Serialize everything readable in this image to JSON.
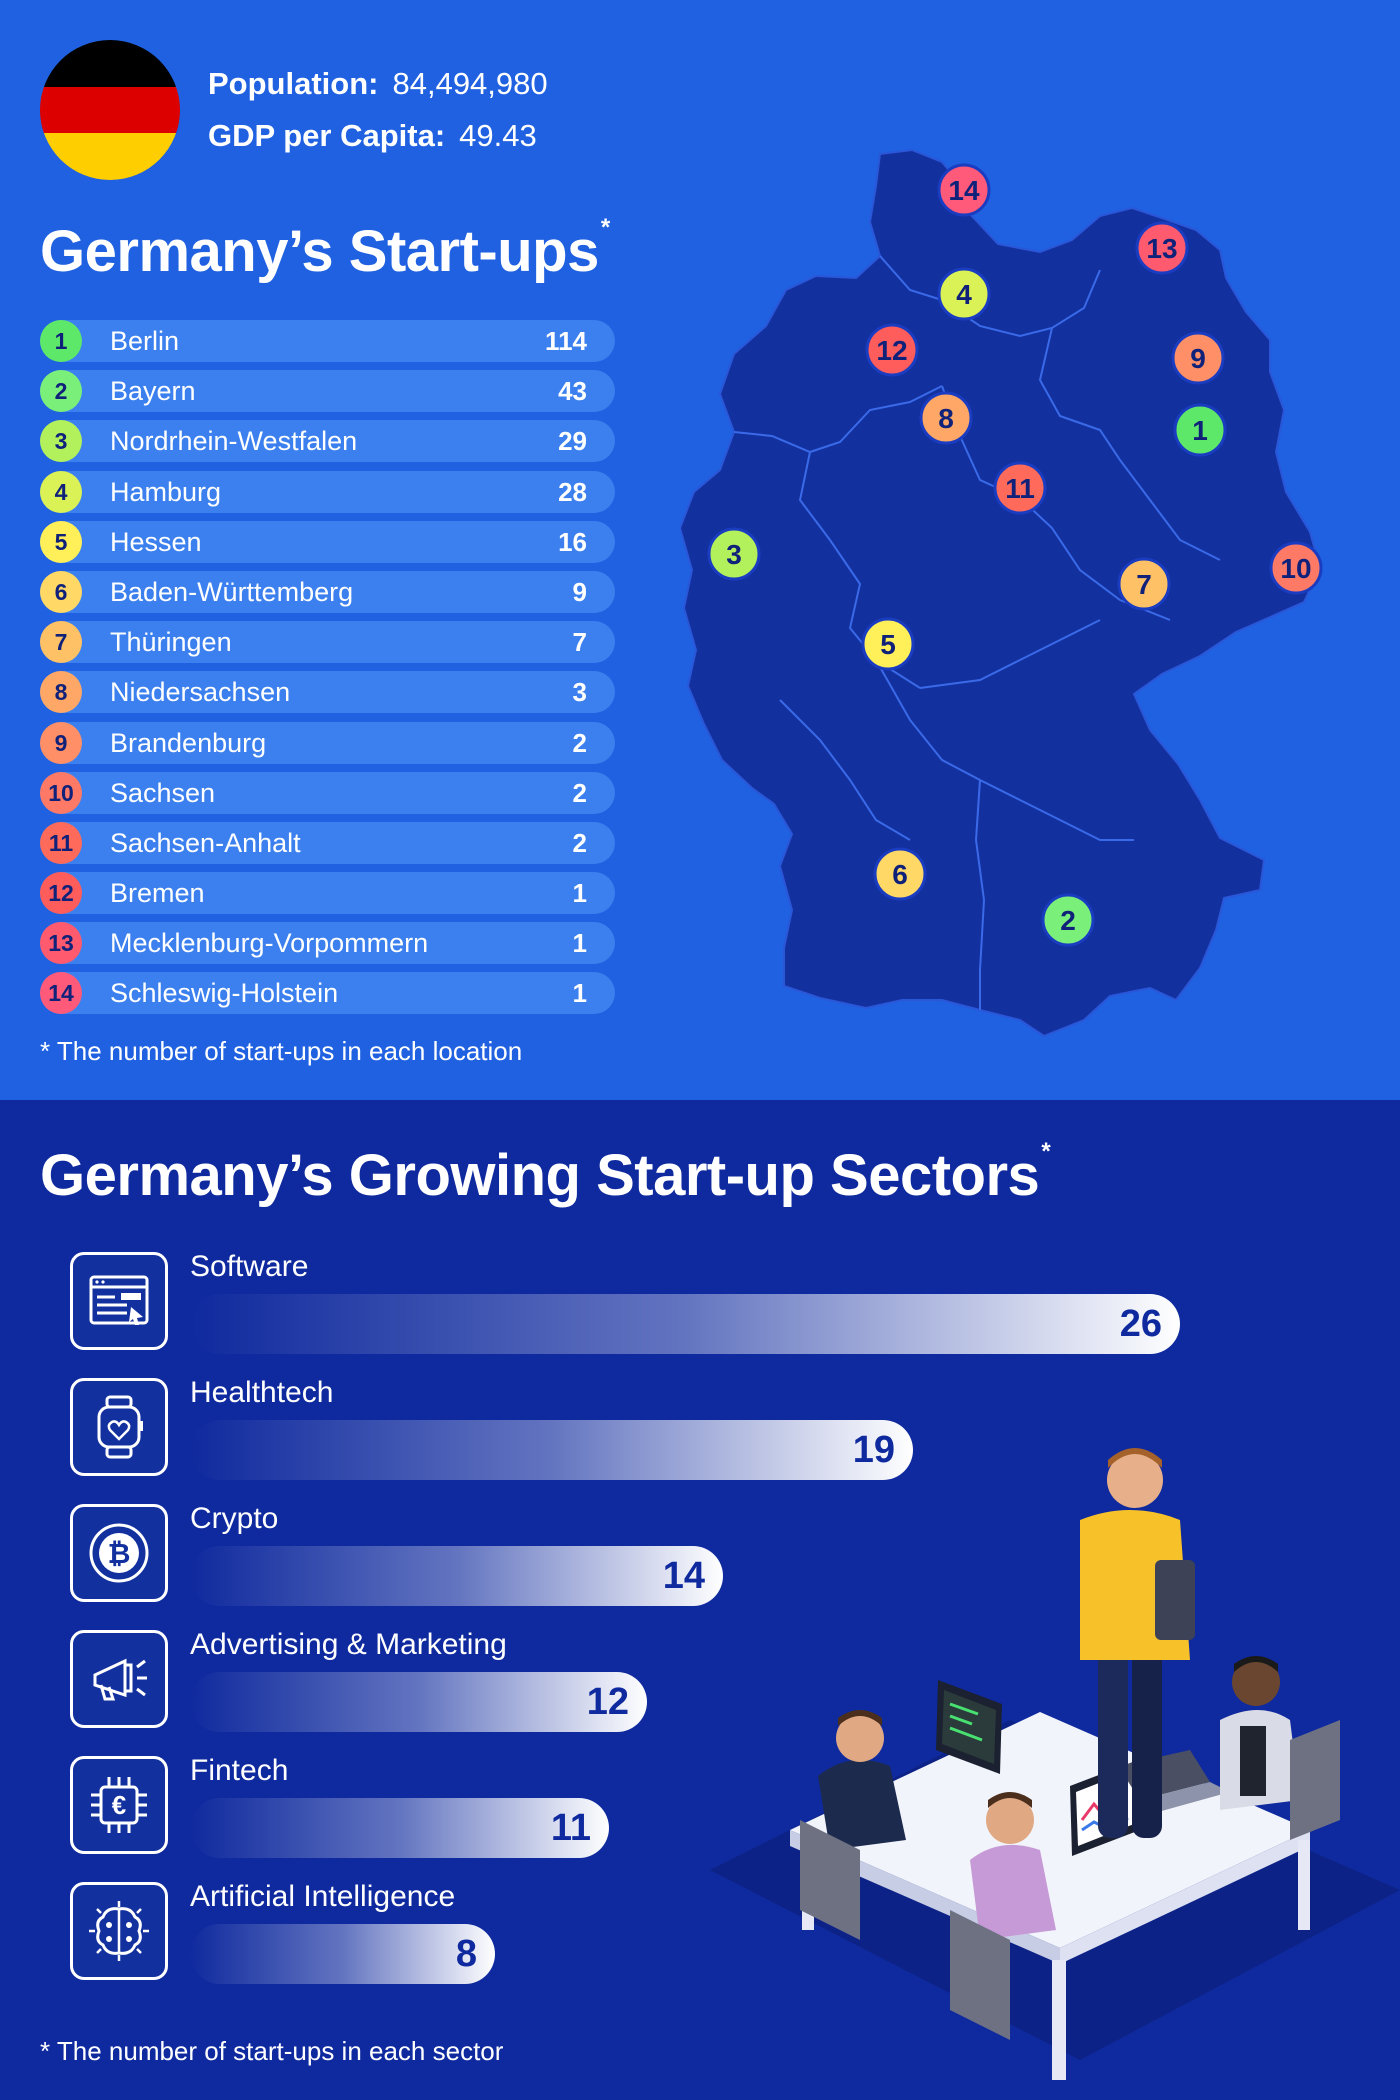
{
  "country": {
    "population_label": "Population:",
    "population_value": "84,494,980",
    "gdp_label": "GDP per Capita:",
    "gdp_value": "49.43",
    "flag_colors": [
      "#000000",
      "#dd0000",
      "#ffce00"
    ]
  },
  "chart_data": [
    {
      "type": "bar",
      "title": "Germany’s Start-ups",
      "title_mark": "*",
      "categories": [
        "Berlin",
        "Bayern",
        "Nordrhein-Westfalen",
        "Hamburg",
        "Hessen",
        "Baden-Württemberg",
        "Thüringen",
        "Niedersachsen",
        "Brandenburg",
        "Sachsen",
        "Sachsen-Anhalt",
        "Bremen",
        "Mecklenburg-Vorpommern",
        "Schleswig-Holstein"
      ],
      "ranks": [
        "1",
        "2",
        "3",
        "4",
        "5",
        "6",
        "7",
        "8",
        "9",
        "10",
        "11",
        "12",
        "13",
        "14"
      ],
      "values": [
        114,
        43,
        29,
        28,
        16,
        9,
        7,
        3,
        2,
        2,
        2,
        1,
        1,
        1
      ],
      "rank_colors": [
        "#5ee86a",
        "#7af07a",
        "#b2f05c",
        "#daf256",
        "#fff05a",
        "#ffd866",
        "#ffc166",
        "#ffa766",
        "#ff8f66",
        "#ff7a66",
        "#ff6a5a",
        "#ff5c5c",
        "#ff5a6e",
        "#ff5a7a"
      ],
      "note": "* The number of start-ups in each location"
    },
    {
      "type": "bar",
      "title": "Germany’s Growing Start-up Sectors",
      "title_mark": "*",
      "categories": [
        "Software",
        "Healthtech",
        "Crypto",
        "Advertising & Marketing",
        "Fintech",
        "Artificial Intelligence"
      ],
      "values": [
        26,
        19,
        14,
        12,
        11,
        8
      ],
      "icons": [
        "browser-window-icon",
        "smartwatch-icon",
        "bitcoin-icon",
        "megaphone-icon",
        "euro-chip-icon",
        "ai-brain-icon"
      ],
      "note": "* The number of start-ups in each sector"
    }
  ],
  "map": {
    "pins": [
      {
        "label": "14",
        "region": "Schleswig-Holstein"
      },
      {
        "label": "13",
        "region": "Mecklenburg-Vorpommern"
      },
      {
        "label": "4",
        "region": "Hamburg"
      },
      {
        "label": "12",
        "region": "Bremen"
      },
      {
        "label": "9",
        "region": "Brandenburg"
      },
      {
        "label": "8",
        "region": "Niedersachsen"
      },
      {
        "label": "1",
        "region": "Berlin"
      },
      {
        "label": "11",
        "region": "Sachsen-Anhalt"
      },
      {
        "label": "3",
        "region": "Nordrhein-Westfalen"
      },
      {
        "label": "10",
        "region": "Sachsen"
      },
      {
        "label": "7",
        "region": "Thüringen"
      },
      {
        "label": "5",
        "region": "Hessen"
      },
      {
        "label": "6",
        "region": "Baden-Württemberg"
      },
      {
        "label": "2",
        "region": "Bayern"
      }
    ]
  }
}
